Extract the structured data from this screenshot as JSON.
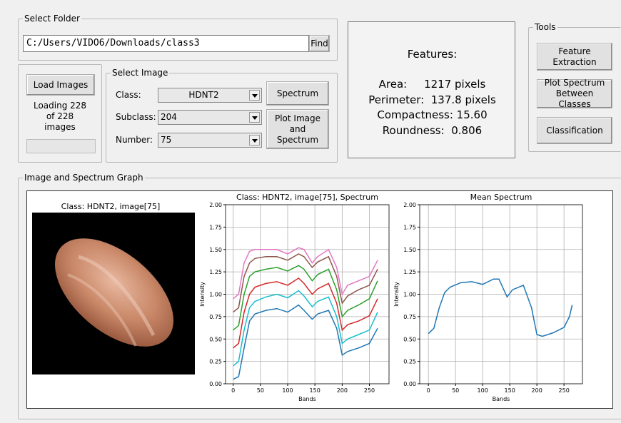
{
  "select_folder": {
    "title": "Select Folder",
    "path": "C:/Users/VIDO6/Downloads/class3",
    "button": "Find"
  },
  "load_panel": {
    "button": "Load Images",
    "status": "Loading 228 of 228 images"
  },
  "select_image": {
    "title": "Select Image",
    "fields": [
      {
        "label": "Class:",
        "value": "HDNT2"
      },
      {
        "label": "Subclass:",
        "value": "204"
      },
      {
        "label": "Number:",
        "value": "75"
      }
    ],
    "buttons": [
      "Spectrum",
      "Plot Image and Spectrum"
    ]
  },
  "features": {
    "title": "Features:",
    "rows": [
      {
        "label": "Area:",
        "value": "1217 pixels"
      },
      {
        "label": "Perimeter:",
        "value": "137.8 pixels"
      },
      {
        "label": "Compactness:",
        "value": "15.60"
      },
      {
        "label": "Roundness:",
        "value": "0.806"
      }
    ]
  },
  "tools": {
    "title": "Tools",
    "buttons": [
      "Feature Extraction",
      "Plot Spectrum Between Classes",
      "Classification"
    ]
  },
  "graph_panel": {
    "title": "Image and Spectrum Graph",
    "image_title": "Class: HDNT2, image[75]"
  },
  "chart_data": [
    {
      "type": "line",
      "title": "Class: HDNT2, image[75], Spectrum",
      "xlabel": "Bands",
      "ylabel": "Intensity",
      "x": [
        0,
        10,
        20,
        30,
        40,
        60,
        80,
        100,
        120,
        130,
        145,
        155,
        175,
        190,
        200,
        210,
        230,
        250,
        265
      ],
      "series": [
        {
          "color": "#e377c2",
          "values": [
            0.95,
            1.0,
            1.35,
            1.48,
            1.5,
            1.5,
            1.5,
            1.45,
            1.52,
            1.5,
            1.35,
            1.42,
            1.5,
            1.3,
            1.0,
            1.1,
            1.15,
            1.2,
            1.38
          ]
        },
        {
          "color": "#8c564b",
          "values": [
            0.8,
            0.85,
            1.2,
            1.35,
            1.4,
            1.42,
            1.42,
            1.38,
            1.45,
            1.42,
            1.3,
            1.36,
            1.42,
            1.2,
            0.9,
            0.98,
            1.05,
            1.1,
            1.28
          ]
        },
        {
          "color": "#2ca02c",
          "values": [
            0.6,
            0.65,
            1.0,
            1.2,
            1.25,
            1.28,
            1.3,
            1.26,
            1.32,
            1.28,
            1.15,
            1.22,
            1.28,
            1.05,
            0.75,
            0.82,
            0.88,
            0.95,
            1.15
          ]
        },
        {
          "color": "#d62728",
          "values": [
            0.4,
            0.45,
            0.8,
            1.0,
            1.08,
            1.12,
            1.14,
            1.1,
            1.18,
            1.12,
            1.0,
            1.06,
            1.12,
            0.9,
            0.6,
            0.66,
            0.7,
            0.76,
            0.95
          ]
        },
        {
          "color": "#17becf",
          "values": [
            0.2,
            0.25,
            0.6,
            0.85,
            0.92,
            0.97,
            1.0,
            0.96,
            1.04,
            0.98,
            0.86,
            0.92,
            0.97,
            0.75,
            0.45,
            0.5,
            0.55,
            0.6,
            0.8
          ]
        },
        {
          "color": "#1f77b4",
          "values": [
            0.05,
            0.08,
            0.4,
            0.7,
            0.78,
            0.82,
            0.84,
            0.8,
            0.88,
            0.82,
            0.72,
            0.78,
            0.82,
            0.62,
            0.32,
            0.36,
            0.4,
            0.45,
            0.62
          ]
        }
      ],
      "xlim": [
        -14,
        286
      ],
      "ylim": [
        0,
        2
      ],
      "xticks": [
        0,
        50,
        100,
        150,
        200,
        250
      ],
      "yticks": [
        {
          "value": 0,
          "label": "0.00"
        },
        {
          "value": 0.25,
          "label": "0.25"
        },
        {
          "value": 0.5,
          "label": "0.50"
        },
        {
          "value": 0.75,
          "label": "0.75"
        },
        {
          "value": 1,
          "label": "1.00"
        },
        {
          "value": 1.25,
          "label": "1.25"
        },
        {
          "value": 1.5,
          "label": "1.50"
        },
        {
          "value": 1.75,
          "label": "1.75"
        },
        {
          "value": 2,
          "label": "2.00"
        }
      ],
      "grid": true
    },
    {
      "type": "line",
      "title": "Mean Spectrum",
      "xlabel": "Bands",
      "ylabel": "Intensity",
      "x": [
        0,
        10,
        20,
        30,
        40,
        60,
        80,
        100,
        120,
        130,
        145,
        155,
        175,
        190,
        200,
        210,
        230,
        250,
        260,
        265
      ],
      "values": [
        0.56,
        0.62,
        0.85,
        1.02,
        1.08,
        1.13,
        1.14,
        1.11,
        1.17,
        1.17,
        0.97,
        1.05,
        1.1,
        0.85,
        0.55,
        0.53,
        0.57,
        0.63,
        0.75,
        0.88
      ],
      "color": "#1f77b4",
      "xlim": [
        -16,
        284
      ],
      "ylim": [
        0,
        2
      ],
      "xticks": [
        0,
        50,
        100,
        150,
        200,
        250
      ],
      "yticks": [
        {
          "value": 0,
          "label": "0.00"
        },
        {
          "value": 0.25,
          "label": "0.25"
        },
        {
          "value": 0.5,
          "label": "0.50"
        },
        {
          "value": 0.75,
          "label": "0.75"
        },
        {
          "value": 1,
          "label": "1.00"
        },
        {
          "value": 1.25,
          "label": "1.25"
        },
        {
          "value": 1.5,
          "label": "1.50"
        },
        {
          "value": 1.75,
          "label": "1.75"
        },
        {
          "value": 2,
          "label": "2.00"
        }
      ],
      "grid": true
    }
  ]
}
